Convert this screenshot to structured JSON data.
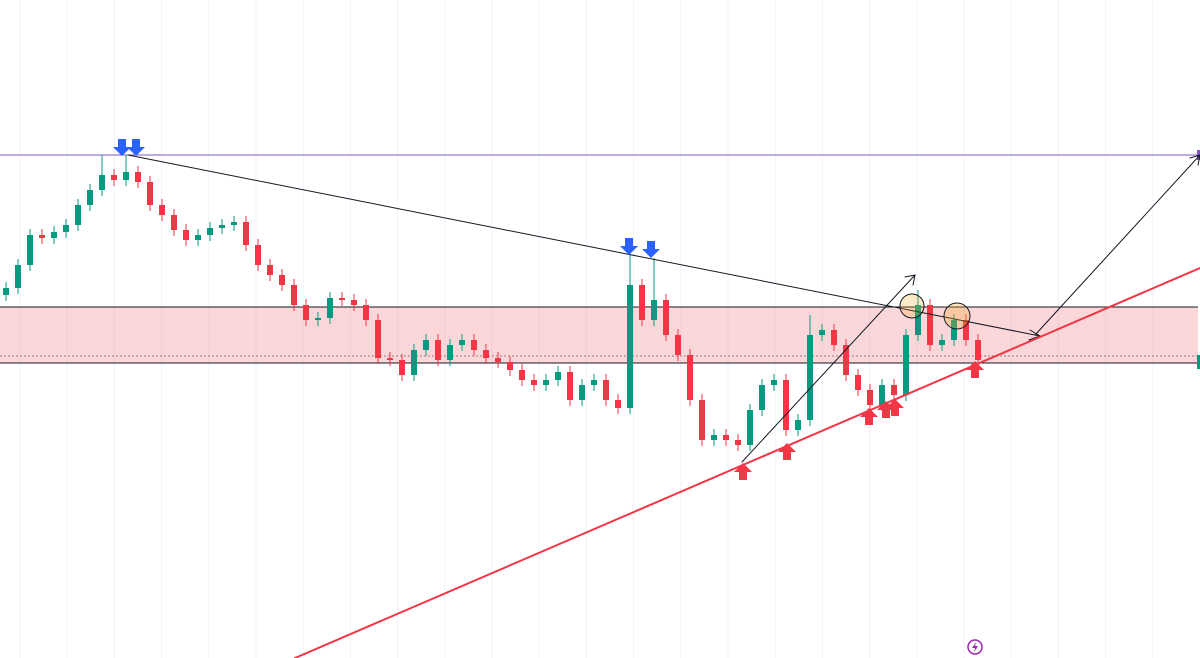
{
  "chart_data": {
    "type": "candlestick",
    "up_color": "#089981",
    "down_color": "#f23645",
    "ylim": [
      0,
      658
    ],
    "open": [
      363,
      370,
      393,
      423,
      420,
      426,
      433,
      453,
      468,
      483,
      478,
      486,
      476,
      453,
      443,
      428,
      418,
      423,
      430,
      433,
      436,
      413,
      393,
      383,
      373,
      353,
      338,
      340,
      360,
      358,
      353,
      338,
      300,
      298,
      283,
      308,
      318,
      298,
      313,
      318,
      308,
      300,
      296,
      288,
      278,
      273,
      278,
      286,
      258,
      273,
      278,
      258,
      250,
      373,
      338,
      358,
      323,
      303,
      258,
      218,
      223,
      218,
      213,
      248,
      273,
      278,
      228,
      238,
      323,
      328,
      313,
      283,
      268,
      253,
      273,
      263,
      323,
      353,
      313,
      318,
      338,
      318
    ],
    "high": [
      376,
      399,
      429,
      429,
      432,
      439,
      459,
      474,
      503,
      489,
      503,
      492,
      482,
      459,
      449,
      434,
      429,
      436,
      439,
      442,
      442,
      419,
      399,
      389,
      379,
      359,
      346,
      366,
      366,
      364,
      359,
      344,
      306,
      304,
      314,
      324,
      324,
      319,
      324,
      324,
      314,
      306,
      302,
      294,
      284,
      284,
      292,
      292,
      279,
      284,
      284,
      264,
      403,
      379,
      400,
      364,
      329,
      309,
      264,
      229,
      229,
      224,
      254,
      279,
      284,
      284,
      244,
      343,
      334,
      334,
      319,
      289,
      274,
      279,
      279,
      329,
      368,
      359,
      324,
      344,
      344,
      324
    ],
    "low": [
      357,
      364,
      387,
      414,
      414,
      420,
      427,
      447,
      462,
      472,
      472,
      470,
      447,
      437,
      422,
      412,
      412,
      417,
      424,
      427,
      407,
      387,
      377,
      367,
      347,
      332,
      332,
      334,
      352,
      347,
      332,
      294,
      292,
      277,
      277,
      302,
      292,
      292,
      307,
      302,
      294,
      290,
      282,
      272,
      267,
      267,
      272,
      252,
      252,
      267,
      252,
      244,
      244,
      332,
      332,
      317,
      297,
      252,
      212,
      212,
      212,
      207,
      207,
      242,
      267,
      222,
      222,
      232,
      317,
      307,
      277,
      262,
      247,
      247,
      257,
      257,
      317,
      307,
      307,
      312,
      312,
      292
    ],
    "close": [
      370,
      393,
      423,
      420,
      426,
      433,
      453,
      468,
      483,
      478,
      486,
      476,
      453,
      443,
      428,
      418,
      423,
      430,
      433,
      436,
      413,
      393,
      383,
      373,
      353,
      338,
      340,
      360,
      358,
      353,
      338,
      300,
      298,
      283,
      308,
      318,
      298,
      313,
      318,
      308,
      300,
      296,
      288,
      278,
      273,
      278,
      286,
      258,
      273,
      278,
      258,
      250,
      373,
      338,
      358,
      323,
      303,
      258,
      218,
      223,
      218,
      213,
      248,
      273,
      278,
      228,
      238,
      323,
      328,
      313,
      283,
      268,
      253,
      273,
      263,
      323,
      353,
      313,
      318,
      338,
      318,
      298
    ]
  }
}
